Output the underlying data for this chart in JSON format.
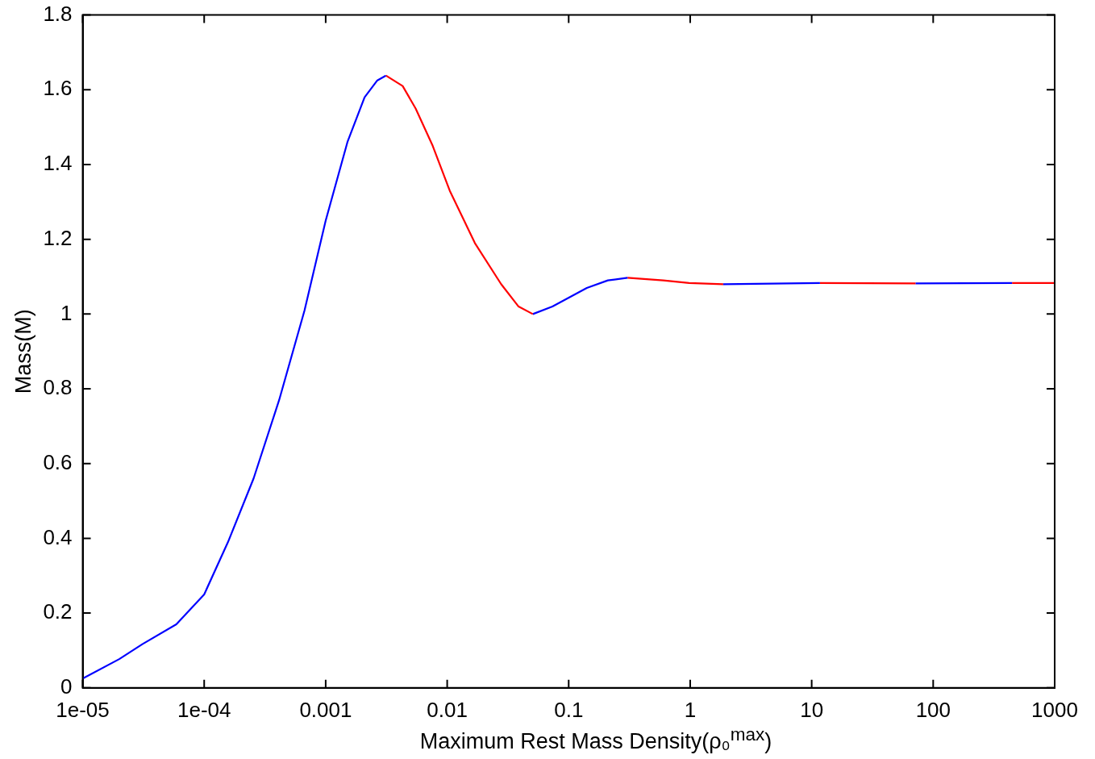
{
  "chart_data": {
    "type": "line",
    "xlabel": "Maximum Rest Mass Density(ρ₀$^{max}$)",
    "ylabel": "Mass(M)",
    "log": "x",
    "xlim": [
      1e-05,
      1000
    ],
    "ylim": [
      0,
      1.8
    ],
    "xticks": [
      {
        "value": 1e-05,
        "label": "1e-05"
      },
      {
        "value": 0.0001,
        "label": "1e-04"
      },
      0.001,
      0.01,
      0.1,
      1,
      10,
      100,
      1000
    ],
    "yticks": [
      0,
      0.2,
      0.4,
      0.6,
      0.8,
      1,
      1.2,
      1.4,
      1.6,
      1.8
    ],
    "grid": false,
    "legend": false,
    "marker": "none",
    "line_style": "solid",
    "series": [
      {
        "color": "#0000ff",
        "x": [
          1e-05,
          2e-05,
          3.1e-05,
          5.9e-05,
          0.0001,
          0.000157,
          0.000255,
          0.000414,
          0.00067,
          0.001,
          0.00151,
          0.00209,
          0.00266,
          0.00313
        ],
        "values": [
          0.025,
          0.077,
          0.117,
          0.17,
          0.25,
          0.39,
          0.56,
          0.77,
          1.01,
          1.25,
          1.46,
          1.58,
          1.625,
          1.638
        ]
      },
      {
        "color": "#ff0000",
        "x": [
          0.00313,
          0.0043,
          0.0055,
          0.0076,
          0.0105,
          0.0169,
          0.0278,
          0.0387,
          0.0507
        ],
        "values": [
          1.638,
          1.61,
          1.55,
          1.45,
          1.33,
          1.19,
          1.08,
          1.02,
          1.0
        ]
      },
      {
        "color": "#0000ff",
        "x": [
          0.0507,
          0.0735,
          0.141,
          0.21,
          0.305
        ],
        "values": [
          1.0,
          1.02,
          1.07,
          1.09,
          1.097
        ]
      },
      {
        "color": "#ff0000",
        "x": [
          0.305,
          0.6,
          0.98,
          1.87
        ],
        "values": [
          1.097,
          1.09,
          1.083,
          1.08
        ]
      },
      {
        "color": "#0000ff",
        "x": [
          1.87,
          11.7
        ],
        "values": [
          1.08,
          1.083
        ]
      },
      {
        "color": "#ff0000",
        "x": [
          11.7,
          71.5
        ],
        "values": [
          1.083,
          1.082
        ]
      },
      {
        "color": "#0000ff",
        "x": [
          71.5,
          446
        ],
        "values": [
          1.082,
          1.083
        ]
      },
      {
        "color": "#ff0000",
        "x": [
          446,
          1000
        ],
        "values": [
          1.083,
          1.083
        ]
      }
    ]
  }
}
